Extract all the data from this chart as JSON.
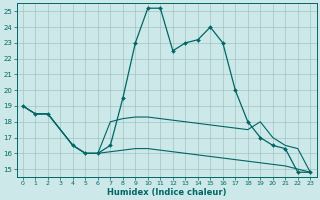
{
  "xlabel": "Humidex (Indice chaleur)",
  "bg_color": "#cce8e8",
  "grid_color": "#99bbbb",
  "line_color": "#006666",
  "xlim": [
    -0.5,
    23.5
  ],
  "ylim": [
    14.5,
    25.5
  ],
  "xticks": [
    0,
    1,
    2,
    3,
    4,
    5,
    6,
    7,
    8,
    9,
    10,
    11,
    12,
    13,
    14,
    15,
    16,
    17,
    18,
    19,
    20,
    21,
    22,
    23
  ],
  "yticks": [
    15,
    16,
    17,
    18,
    19,
    20,
    21,
    22,
    23,
    24,
    25
  ],
  "line1_x": [
    0,
    1,
    2,
    4,
    5,
    6,
    7,
    8,
    9,
    10,
    11,
    12,
    13,
    14,
    15,
    16,
    17,
    18,
    19,
    20,
    21,
    22,
    23
  ],
  "line1_y": [
    19.0,
    18.5,
    18.5,
    16.5,
    16.0,
    16.0,
    16.5,
    19.5,
    23.0,
    25.2,
    25.2,
    22.5,
    23.0,
    23.2,
    24.0,
    23.0,
    20.0,
    18.0,
    17.0,
    16.5,
    16.3,
    14.8,
    14.8
  ],
  "line2_x": [
    0,
    1,
    2,
    4,
    5,
    6,
    7,
    8,
    9,
    10,
    11,
    12,
    13,
    14,
    15,
    16,
    17,
    18,
    19,
    20,
    21,
    22,
    23
  ],
  "line2_y": [
    19.0,
    18.5,
    18.5,
    16.5,
    16.0,
    16.0,
    18.0,
    18.2,
    18.3,
    18.3,
    18.2,
    18.1,
    18.0,
    17.9,
    17.8,
    17.7,
    17.6,
    17.5,
    18.0,
    17.0,
    16.5,
    16.3,
    14.8
  ],
  "line3_x": [
    0,
    1,
    2,
    4,
    5,
    6,
    7,
    8,
    9,
    10,
    11,
    12,
    13,
    14,
    15,
    16,
    17,
    18,
    19,
    20,
    21,
    22,
    23
  ],
  "line3_y": [
    19.0,
    18.5,
    18.5,
    16.5,
    16.0,
    16.0,
    16.1,
    16.2,
    16.3,
    16.3,
    16.2,
    16.1,
    16.0,
    15.9,
    15.8,
    15.7,
    15.6,
    15.5,
    15.4,
    15.3,
    15.2,
    15.0,
    14.8
  ]
}
